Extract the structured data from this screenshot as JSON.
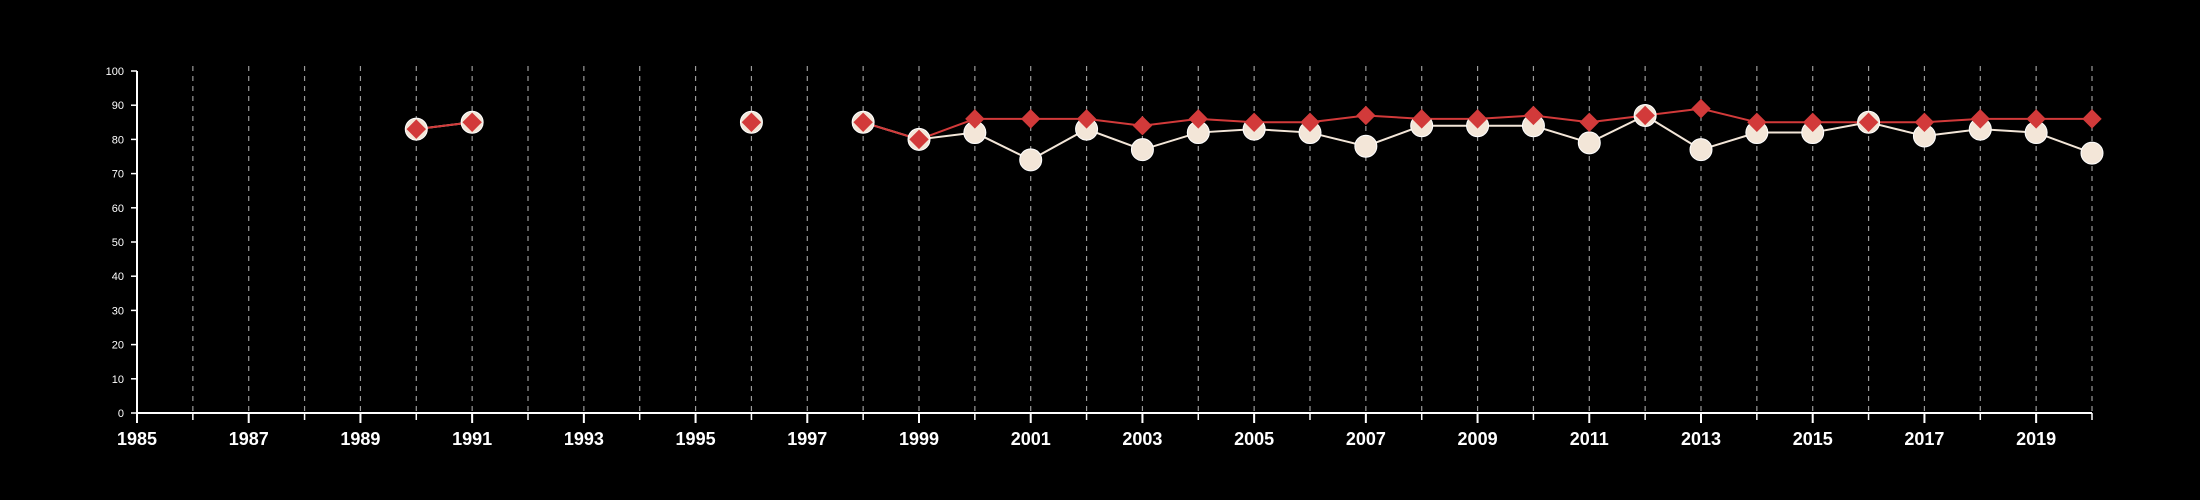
{
  "colors": {
    "background": "#000000",
    "axis": "#ffffff",
    "grid": "#9a9a9a",
    "series_a": "#f3e6d8",
    "series_b": "#d23a3a"
  },
  "chart_data": {
    "type": "line",
    "title": "",
    "xlabel": "",
    "ylabel": "",
    "xlim": [
      1985,
      2020
    ],
    "ylim": [
      0,
      100
    ],
    "x_tick_labels": [
      "1985",
      "1987",
      "1989",
      "1991",
      "1993",
      "1995",
      "1997",
      "1999",
      "2001",
      "2003",
      "2005",
      "2007",
      "2009",
      "2011",
      "2013",
      "2015",
      "2017",
      "2019"
    ],
    "y_tick_labels": [
      "0",
      "10",
      "20",
      "30",
      "40",
      "50",
      "60",
      "70",
      "80",
      "90",
      "100"
    ],
    "grid": "vertical dashed lines at every year",
    "legend": "none",
    "series": [
      {
        "marker": "circle",
        "points": [
          [
            1990,
            83
          ],
          [
            1991,
            85
          ],
          [
            1996,
            85
          ],
          [
            1998,
            85
          ],
          [
            1999,
            80
          ],
          [
            2000,
            82
          ],
          [
            2001,
            74
          ],
          [
            2002,
            83
          ],
          [
            2003,
            77
          ],
          [
            2004,
            82
          ],
          [
            2005,
            83
          ],
          [
            2006,
            82
          ],
          [
            2007,
            78
          ],
          [
            2008,
            84
          ],
          [
            2009,
            84
          ],
          [
            2010,
            84
          ],
          [
            2011,
            79
          ],
          [
            2012,
            87
          ],
          [
            2013,
            77
          ],
          [
            2014,
            82
          ],
          [
            2015,
            82
          ],
          [
            2016,
            85
          ],
          [
            2017,
            81
          ],
          [
            2018,
            83
          ],
          [
            2019,
            82
          ],
          [
            2020,
            76
          ]
        ]
      },
      {
        "marker": "diamond",
        "points": [
          [
            1990,
            83
          ],
          [
            1991,
            85
          ],
          [
            1996,
            85
          ],
          [
            1998,
            85
          ],
          [
            1999,
            80
          ],
          [
            2000,
            86
          ],
          [
            2001,
            86
          ],
          [
            2002,
            86
          ],
          [
            2003,
            84
          ],
          [
            2004,
            86
          ],
          [
            2005,
            85
          ],
          [
            2006,
            85
          ],
          [
            2007,
            87
          ],
          [
            2008,
            86
          ],
          [
            2009,
            86
          ],
          [
            2010,
            87
          ],
          [
            2011,
            85
          ],
          [
            2012,
            87
          ],
          [
            2013,
            89
          ],
          [
            2014,
            85
          ],
          [
            2015,
            85
          ],
          [
            2016,
            85
          ],
          [
            2017,
            85
          ],
          [
            2018,
            86
          ],
          [
            2019,
            86
          ],
          [
            2020,
            86
          ]
        ]
      }
    ]
  }
}
